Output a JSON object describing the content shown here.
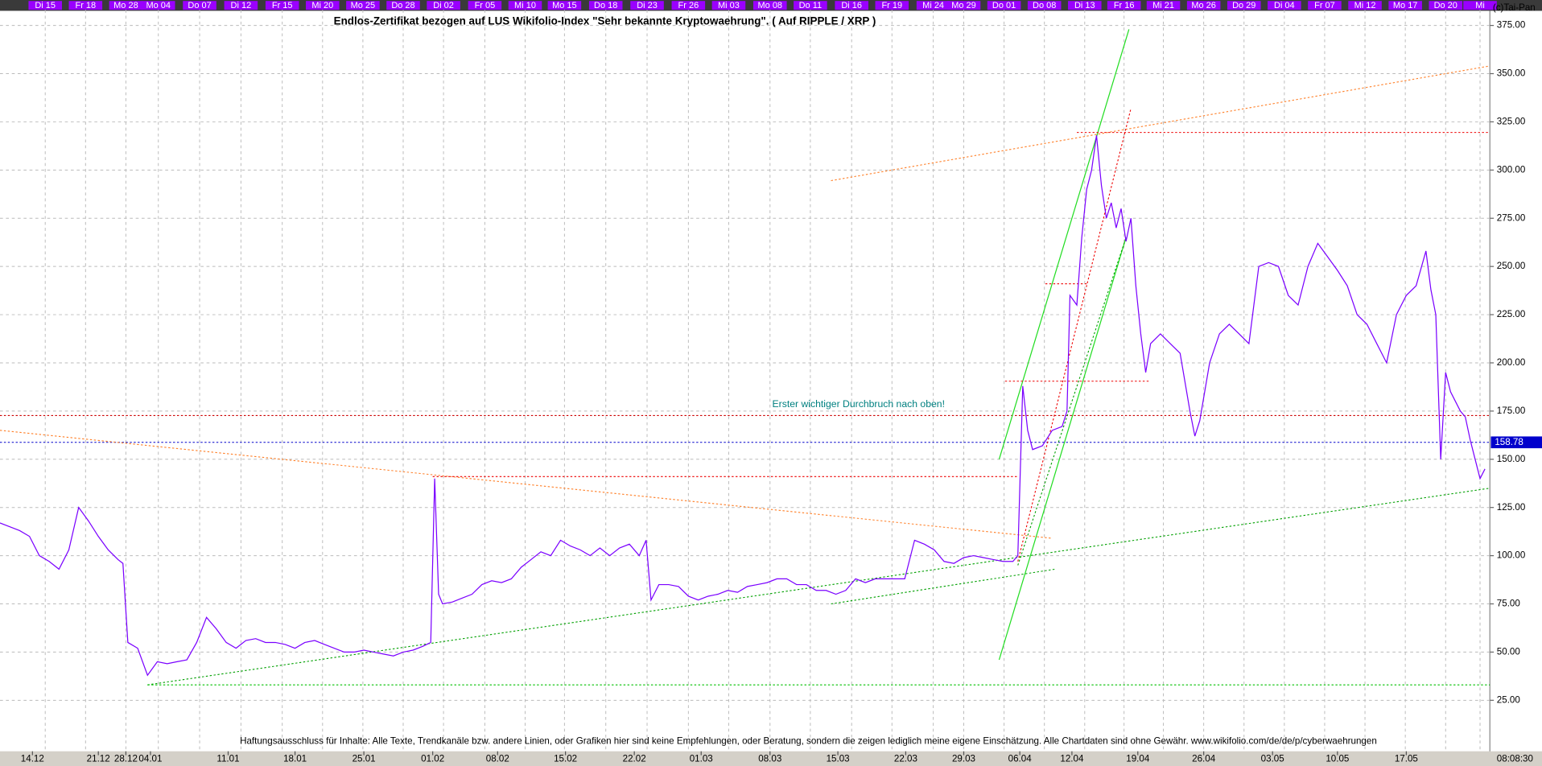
{
  "chart_data": {
    "type": "line",
    "title": "Endlos-Zertifikat bezogen auf LUS Wikifolio-Index \"Sehr bekannte Kryptowaehrung\". ( Auf RIPPLE / XRP )",
    "annotation": "Erster wichtiger Durchbruch nach oben!",
    "disclaimer": "Haftungsausschluss für Inhalte: Alle Texte, Trendkanäle bzw. andere Linien, oder Grafiken hier sind keine Empfehlungen, oder Beratung, sondern die zeigen lediglich meine eigene Einschätzung. Alle Chartdaten sind ohne Gewähr.  www.wikifolio.com/de/de/p/cyberwaehrungen",
    "copyright": "(c)Tai-Pan",
    "time": "08:08:30",
    "color": "#7a00ff",
    "grid": true,
    "x": [
      0,
      1,
      2,
      3,
      4,
      5,
      6,
      7,
      8,
      9,
      10,
      11,
      12,
      12.5,
      13,
      14,
      15,
      16,
      17,
      18,
      19,
      20,
      21,
      22,
      23,
      24,
      25,
      26,
      27,
      28,
      29,
      30,
      31,
      32,
      33,
      34,
      35,
      36,
      37,
      38,
      39,
      40,
      41,
      42,
      43,
      43.8,
      44.2,
      44.6,
      45,
      46,
      47,
      48,
      49,
      50,
      51,
      52,
      53,
      54,
      55,
      56,
      57,
      58,
      59,
      60,
      61,
      62,
      63,
      64,
      65,
      65.7,
      66.2,
      67,
      68,
      69,
      70,
      71,
      72,
      73,
      74,
      75,
      76,
      77,
      78,
      79,
      80,
      81,
      82,
      83,
      84,
      85,
      86,
      87,
      88,
      89,
      90,
      91,
      92,
      93,
      94,
      95,
      96,
      97,
      98,
      99,
      100,
      101,
      102,
      103,
      103.5,
      104,
      104.5,
      105,
      106,
      107,
      108,
      108.5,
      108.8,
      109.5,
      110,
      110.5,
      111,
      111.5,
      112,
      112.5,
      113,
      113.5,
      114,
      114.5,
      115,
      115.5,
      116,
      116.5,
      117,
      118,
      119,
      120,
      121,
      121.5,
      122,
      123,
      124,
      125,
      126,
      127,
      128,
      129,
      130,
      131,
      132,
      133,
      134,
      135,
      136,
      137,
      138,
      139,
      140,
      141,
      142,
      143,
      144,
      145,
      145.5,
      146,
      146.5,
      147,
      147.5,
      148,
      148.5,
      149,
      149.5,
      150,
      150.5,
      151
    ],
    "values": [
      117,
      115,
      113,
      110,
      100,
      97,
      93,
      103,
      125,
      118,
      110,
      103,
      98,
      96,
      55,
      52,
      38,
      45,
      44,
      45,
      46,
      55,
      68,
      62,
      55,
      52,
      56,
      57,
      55,
      55,
      54,
      52,
      55,
      56,
      54,
      52,
      50,
      50,
      51,
      50,
      49,
      48,
      50,
      51,
      53,
      55,
      140,
      80,
      75,
      76,
      78,
      80,
      85,
      87,
      86,
      88,
      94,
      98,
      102,
      100,
      108,
      105,
      103,
      100,
      104,
      100,
      104,
      106,
      100,
      108,
      77,
      85,
      85,
      84,
      79,
      77,
      79,
      80,
      82,
      81,
      84,
      85,
      86,
      88,
      88,
      85,
      85,
      82,
      82,
      80,
      82,
      88,
      86,
      88,
      88,
      88,
      88,
      108,
      106,
      103,
      97,
      96,
      99,
      100,
      99,
      98,
      97,
      97,
      100,
      188,
      165,
      155,
      157,
      165,
      167,
      175,
      235,
      230,
      265,
      290,
      300,
      318,
      292,
      275,
      283,
      270,
      280,
      263,
      275,
      240,
      215,
      195,
      210,
      215,
      210,
      205,
      175,
      162,
      170,
      200,
      215,
      220,
      215,
      210,
      250,
      252,
      250,
      235,
      230,
      250,
      262,
      255,
      248,
      240,
      225,
      220,
      210,
      200,
      225,
      235,
      240,
      258,
      238,
      225,
      150,
      195,
      185,
      180,
      175,
      172,
      160,
      150,
      140,
      145
    ],
    "xlim": [
      0,
      151.5
    ],
    "ylim": [
      6.2,
      383.1
    ],
    "yticks": [
      {
        "value": 25,
        "label": "25.00"
      },
      {
        "value": 50,
        "label": "50.00"
      },
      {
        "value": 75,
        "label": "75.00"
      },
      {
        "value": 100,
        "label": "100.00"
      },
      {
        "value": 125,
        "label": "125.00"
      },
      {
        "value": 150,
        "label": "150.00"
      },
      {
        "value": 175,
        "label": "175.00"
      },
      {
        "value": 200,
        "label": "200.00"
      },
      {
        "value": 225,
        "label": "225.00"
      },
      {
        "value": 250,
        "label": "250.00"
      },
      {
        "value": 275,
        "label": "275.00"
      },
      {
        "value": 300,
        "label": "300.00"
      },
      {
        "value": 325,
        "label": "325.00"
      },
      {
        "value": 350,
        "label": "350.00"
      },
      {
        "value": 375,
        "label": "375.00"
      }
    ],
    "xticks": [
      {
        "value": 3.3,
        "label": "14.12"
      },
      {
        "value": 10,
        "label": "21.12"
      },
      {
        "value": 12.8,
        "label": "28.12"
      },
      {
        "value": 15.3,
        "label": "04.01"
      },
      {
        "value": 23.2,
        "label": "11.01"
      },
      {
        "value": 30,
        "label": "18.01"
      },
      {
        "value": 37,
        "label": "25.01"
      },
      {
        "value": 44,
        "label": "01.02"
      },
      {
        "value": 50.6,
        "label": "08.02"
      },
      {
        "value": 57.5,
        "label": "15.02"
      },
      {
        "value": 64.5,
        "label": "22.02"
      },
      {
        "value": 71.3,
        "label": "01.03"
      },
      {
        "value": 78.3,
        "label": "08.03"
      },
      {
        "value": 85.2,
        "label": "15.03"
      },
      {
        "value": 92.1,
        "label": "22.03"
      },
      {
        "value": 98,
        "label": "29.03"
      },
      {
        "value": 103.7,
        "label": "06.04"
      },
      {
        "value": 109,
        "label": "12.04"
      },
      {
        "value": 115.7,
        "label": "19.04"
      },
      {
        "value": 122.4,
        "label": "26.04"
      },
      {
        "value": 129.4,
        "label": "03.05"
      },
      {
        "value": 136,
        "label": "10.05"
      },
      {
        "value": 143,
        "label": "17.05"
      }
    ],
    "x2ticks": [
      {
        "value": 4.6,
        "label": "Di 15"
      },
      {
        "value": 8.7,
        "label": "Fr 18"
      },
      {
        "value": 12.8,
        "label": "Mo 28"
      },
      {
        "value": 16.1,
        "label": "Mo 04"
      },
      {
        "value": 20.3,
        "label": "Do 07"
      },
      {
        "value": 24.5,
        "label": "Di 12"
      },
      {
        "value": 28.7,
        "label": "Fr 15"
      },
      {
        "value": 32.8,
        "label": "Mi 20"
      },
      {
        "value": 36.9,
        "label": "Mo 25"
      },
      {
        "value": 41,
        "label": "Do 28"
      },
      {
        "value": 45.1,
        "label": "Di 02"
      },
      {
        "value": 49.3,
        "label": "Fr 05"
      },
      {
        "value": 53.4,
        "label": "Mi 10"
      },
      {
        "value": 57.4,
        "label": "Mo 15"
      },
      {
        "value": 61.6,
        "label": "Do 18"
      },
      {
        "value": 65.8,
        "label": "Di 23"
      },
      {
        "value": 70,
        "label": "Fr 26"
      },
      {
        "value": 74.1,
        "label": "Mi 03"
      },
      {
        "value": 78.3,
        "label": "Mo 08"
      },
      {
        "value": 82.4,
        "label": "Do 11"
      },
      {
        "value": 86.6,
        "label": "Di 16"
      },
      {
        "value": 90.7,
        "label": "Fr 19"
      },
      {
        "value": 94.9,
        "label": "Mi 24"
      },
      {
        "value": 98,
        "label": "Mo 29"
      },
      {
        "value": 102.1,
        "label": "Do 01"
      },
      {
        "value": 106.2,
        "label": "Do 08"
      },
      {
        "value": 110.3,
        "label": "Di 13"
      },
      {
        "value": 114.3,
        "label": "Fr 16"
      },
      {
        "value": 118.3,
        "label": "Mi 21"
      },
      {
        "value": 122.4,
        "label": "Mo 26"
      },
      {
        "value": 126.5,
        "label": "Do 29"
      },
      {
        "value": 130.6,
        "label": "Di 04"
      },
      {
        "value": 134.7,
        "label": "Fr 07"
      },
      {
        "value": 138.8,
        "label": "Mi 12"
      },
      {
        "value": 142.9,
        "label": "Mo 17"
      },
      {
        "value": 147,
        "label": "Do 20"
      },
      {
        "value": 150.5,
        "label": "Mi"
      }
    ],
    "hlines": [
      {
        "value": 172.7,
        "color": "#cc0000"
      },
      {
        "value": 158.78,
        "color": "#0000cc"
      }
    ],
    "trendlines": [
      {
        "color": "#ff7f27",
        "style": "dotted",
        "x": [
          0,
          107
        ],
        "y": [
          165,
          109
        ]
      },
      {
        "color": "#ff7f27",
        "style": "dotted",
        "x": [
          84.5,
          151.5
        ],
        "y": [
          294.5,
          354
        ]
      },
      {
        "color": "#00a000",
        "style": "dotted",
        "x": [
          15,
          151.5
        ],
        "y": [
          33,
          135
        ]
      },
      {
        "color": "#00c000",
        "style": "dotted",
        "x": [
          15,
          151.5
        ],
        "y": [
          33,
          33
        ]
      },
      {
        "color": "#00a000",
        "style": "dotted",
        "x": [
          84.5,
          107.3
        ],
        "y": [
          75,
          93
        ]
      },
      {
        "color": "#22dd22",
        "style": "solid",
        "x": [
          101.6,
          114.8
        ],
        "y": [
          150,
          373
        ]
      },
      {
        "color": "#22dd22",
        "style": "solid",
        "x": [
          101.6,
          114.5
        ],
        "y": [
          46,
          265
        ]
      },
      {
        "color": "#00a000",
        "style": "dotted",
        "x": [
          103.5,
          114.5
        ],
        "y": [
          95,
          265
        ]
      },
      {
        "color": "#ee0000",
        "style": "dotted",
        "x": [
          103.5,
          115
        ],
        "y": [
          97,
          332
        ]
      },
      {
        "color": "#ee0000",
        "style": "dotted",
        "x": [
          44,
          103.5
        ],
        "y": [
          141,
          141
        ]
      },
      {
        "color": "#ee0000",
        "style": "dotted",
        "x": [
          102.2,
          117
        ],
        "y": [
          190.5,
          190.5
        ]
      },
      {
        "color": "#ee0000",
        "style": "dotted",
        "x": [
          106.3,
          110.5
        ],
        "y": [
          241,
          241
        ]
      },
      {
        "color": "#ee0000",
        "style": "dotted",
        "x": [
          109.5,
          151.5
        ],
        "y": [
          319.5,
          319.5
        ]
      }
    ]
  }
}
